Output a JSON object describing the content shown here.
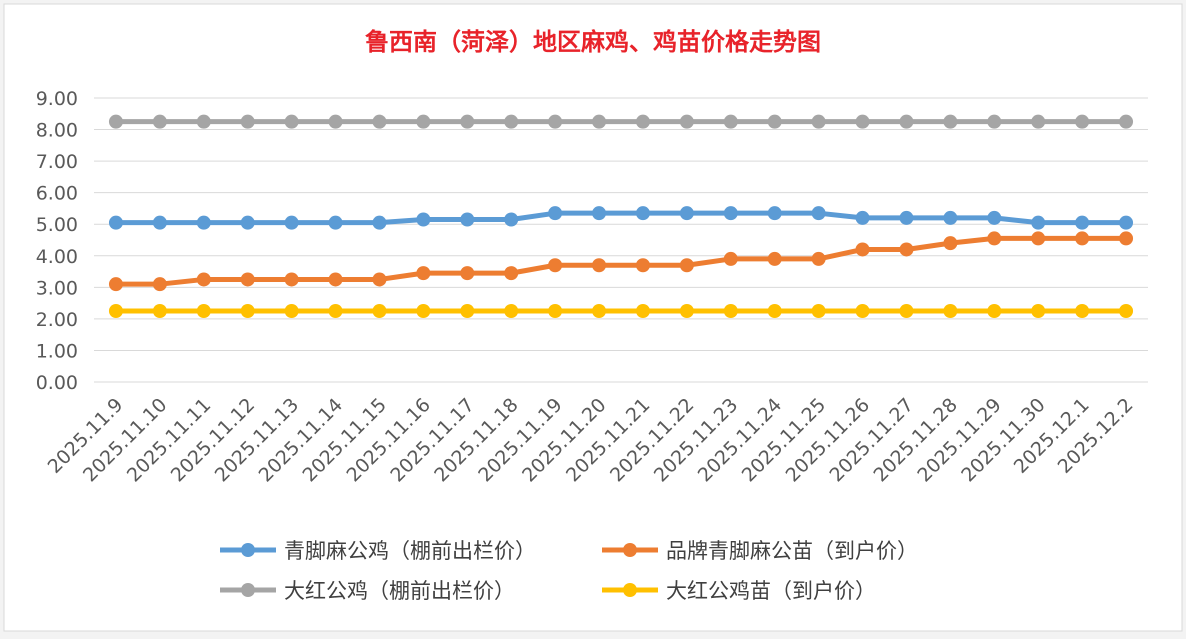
{
  "chart_data": {
    "type": "line",
    "title": "鲁西南（菏泽）地区麻鸡、鸡苗价格走势图",
    "title_color": "#e8232a",
    "xlabel": "",
    "ylabel": "",
    "ylim": [
      0,
      9
    ],
    "y_ticks": [
      "0.00",
      "1.00",
      "2.00",
      "3.00",
      "4.00",
      "5.00",
      "6.00",
      "7.00",
      "8.00",
      "9.00"
    ],
    "grid": true,
    "legend_position": "bottom",
    "categories": [
      "2025.11.9",
      "2025.11.10",
      "2025.11.11",
      "2025.11.12",
      "2025.11.13",
      "2025.11.14",
      "2025.11.15",
      "2025.11.16",
      "2025.11.17",
      "2025.11.18",
      "2025.11.19",
      "2025.11.20",
      "2025.11.21",
      "2025.11.22",
      "2025.11.23",
      "2025.11.24",
      "2025.11.25",
      "2025.11.26",
      "2025.11.27",
      "2025.11.28",
      "2025.11.29",
      "2025.11.30",
      "2025.12.1",
      "2025.12.2"
    ],
    "series": [
      {
        "name": "青脚麻公鸡（棚前出栏价）",
        "color": "#5b9bd5",
        "values": [
          5.05,
          5.05,
          5.05,
          5.05,
          5.05,
          5.05,
          5.05,
          5.15,
          5.15,
          5.15,
          5.35,
          5.35,
          5.35,
          5.35,
          5.35,
          5.35,
          5.35,
          5.2,
          5.2,
          5.2,
          5.2,
          5.05,
          5.05,
          5.05
        ]
      },
      {
        "name": "品牌青脚麻公苗（到户价）",
        "color": "#ed7d31",
        "values": [
          3.1,
          3.1,
          3.25,
          3.25,
          3.25,
          3.25,
          3.25,
          3.45,
          3.45,
          3.45,
          3.7,
          3.7,
          3.7,
          3.7,
          3.9,
          3.9,
          3.9,
          4.2,
          4.2,
          4.4,
          4.55,
          4.55,
          4.55,
          4.55
        ]
      },
      {
        "name": "大红公鸡（棚前出栏价）",
        "color": "#a5a5a5",
        "values": [
          8.25,
          8.25,
          8.25,
          8.25,
          8.25,
          8.25,
          8.25,
          8.25,
          8.25,
          8.25,
          8.25,
          8.25,
          8.25,
          8.25,
          8.25,
          8.25,
          8.25,
          8.25,
          8.25,
          8.25,
          8.25,
          8.25,
          8.25,
          8.25
        ]
      },
      {
        "name": "大红公鸡苗（到户价）",
        "color": "#ffc000",
        "values": [
          2.25,
          2.25,
          2.25,
          2.25,
          2.25,
          2.25,
          2.25,
          2.25,
          2.25,
          2.25,
          2.25,
          2.25,
          2.25,
          2.25,
          2.25,
          2.25,
          2.25,
          2.25,
          2.25,
          2.25,
          2.25,
          2.25,
          2.25,
          2.25
        ]
      }
    ]
  }
}
